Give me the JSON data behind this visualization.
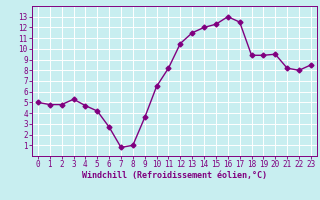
{
  "x": [
    0,
    1,
    2,
    3,
    4,
    5,
    6,
    7,
    8,
    9,
    10,
    11,
    12,
    13,
    14,
    15,
    16,
    17,
    18,
    19,
    20,
    21,
    22,
    23
  ],
  "y": [
    5.0,
    4.8,
    4.8,
    5.3,
    4.7,
    4.2,
    2.7,
    0.8,
    1.0,
    3.6,
    6.5,
    8.2,
    10.5,
    11.5,
    12.0,
    12.3,
    13.0,
    12.5,
    9.4,
    9.4,
    9.5,
    8.2,
    8.0,
    8.5
  ],
  "line_color": "#800080",
  "marker": "D",
  "marker_size": 2.5,
  "bg_color": "#c8eef0",
  "grid_color": "#ffffff",
  "xlabel": "Windchill (Refroidissement éolien,°C)",
  "xlim": [
    -0.5,
    23.5
  ],
  "ylim": [
    0,
    14
  ],
  "xticks": [
    0,
    1,
    2,
    3,
    4,
    5,
    6,
    7,
    8,
    9,
    10,
    11,
    12,
    13,
    14,
    15,
    16,
    17,
    18,
    19,
    20,
    21,
    22,
    23
  ],
  "yticks": [
    1,
    2,
    3,
    4,
    5,
    6,
    7,
    8,
    9,
    10,
    11,
    12,
    13
  ],
  "tick_color": "#800080",
  "label_color": "#800080",
  "font_size": 5.5,
  "xlabel_fontsize": 6.0,
  "linewidth": 1.0
}
